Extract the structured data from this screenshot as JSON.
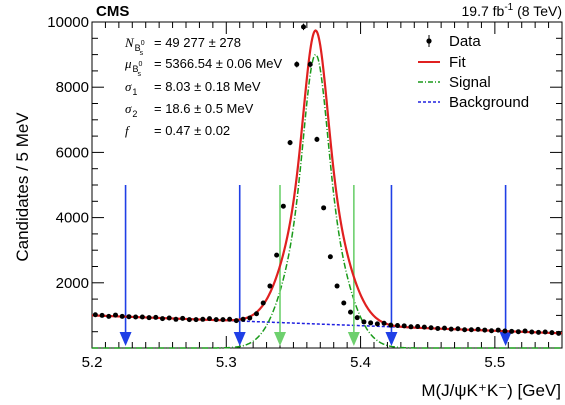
{
  "chart_data": {
    "type": "scatter",
    "experiment": "CMS",
    "lumi_label": "19.7 fb",
    "lumi_exp": "-1",
    "energy_label": " (8 TeV)",
    "xlabel": "M(J/ψK⁺K⁻) [GeV]",
    "ylabel": "Candidates / 5 MeV",
    "xlim": [
      5.2,
      5.55
    ],
    "ylim": [
      0,
      10000
    ],
    "xticks": [
      "5.2",
      "5.3",
      "5.4",
      "5.5"
    ],
    "yticks": [
      "2000",
      "4000",
      "6000",
      "8000",
      "10000"
    ],
    "fit_params": [
      {
        "symbol": "N",
        "sub": "B",
        "subsub": "s",
        "supsup": "0",
        "text": "= 49 277 ± 278"
      },
      {
        "symbol": "μ",
        "sub": "B",
        "subsub": "s",
        "supsup": "0",
        "text": "= 5366.54 ± 0.06 MeV"
      },
      {
        "symbol": "σ",
        "sub": "1",
        "subsub": "",
        "supsup": "",
        "text": "= 8.03 ± 0.18 MeV"
      },
      {
        "symbol": "σ",
        "sub": "2",
        "subsub": "",
        "supsup": "",
        "text": "= 18.6 ± 0.5 MeV"
      },
      {
        "symbol": "f",
        "sub": "",
        "subsub": "",
        "supsup": "",
        "text": "= 0.47 ± 0.02"
      }
    ],
    "legend": [
      {
        "label": "Data",
        "style": "marker"
      },
      {
        "label": "Fit",
        "style": "solid",
        "color": "#e02020"
      },
      {
        "label": "Signal",
        "style": "dashdot",
        "color": "#1a9a1a"
      },
      {
        "label": "Background",
        "style": "dashed",
        "color": "#2020e0"
      }
    ],
    "legend_position": "top-right",
    "data_x": [
      5.2025,
      5.2075,
      5.2125,
      5.2175,
      5.2225,
      5.2275,
      5.2325,
      5.2375,
      5.2425,
      5.2475,
      5.2525,
      5.2575,
      5.2625,
      5.2675,
      5.2725,
      5.2775,
      5.2825,
      5.2875,
      5.2925,
      5.2975,
      5.3025,
      5.3075,
      5.3125,
      5.3175,
      5.3225,
      5.3275,
      5.3325,
      5.3375,
      5.3425,
      5.3475,
      5.3525,
      5.3575,
      5.3625,
      5.3675,
      5.3725,
      5.3775,
      5.3825,
      5.3875,
      5.3925,
      5.3975,
      5.4025,
      5.4075,
      5.4125,
      5.4175,
      5.4225,
      5.4275,
      5.4325,
      5.4375,
      5.4425,
      5.4475,
      5.4525,
      5.4575,
      5.4625,
      5.4675,
      5.4725,
      5.4775,
      5.4825,
      5.4875,
      5.4925,
      5.4975,
      5.5025,
      5.5075,
      5.5125,
      5.5175,
      5.5225,
      5.5275,
      5.5325,
      5.5375,
      5.5425,
      5.5475
    ],
    "data_y": [
      1020,
      1000,
      970,
      1010,
      970,
      960,
      950,
      950,
      930,
      940,
      900,
      920,
      880,
      910,
      870,
      870,
      880,
      900,
      870,
      870,
      880,
      840,
      880,
      920,
      1050,
      1380,
      1900,
      2850,
      4350,
      6300,
      8700,
      9850,
      8700,
      6400,
      4300,
      2800,
      1900,
      1380,
      1100,
      930,
      800,
      770,
      740,
      760,
      700,
      690,
      680,
      650,
      660,
      640,
      620,
      600,
      610,
      580,
      590,
      560,
      560,
      570,
      550,
      530,
      550,
      520,
      510,
      500,
      520,
      490,
      480,
      490,
      470,
      450
    ],
    "fit_model": {
      "mu": 5.36654,
      "sigma1": 0.00803,
      "sigma2": 0.0186,
      "f": 0.47,
      "signal_peak": 9000,
      "bkg_start": 1000,
      "bkg_end": 450
    },
    "signal_window_lines": [
      5.34,
      5.395
    ],
    "sideband_lines": [
      5.225,
      5.31,
      5.423,
      5.508
    ],
    "colors": {
      "fit": "#e02020",
      "signal": "#1a9a1a",
      "background": "#2020e0",
      "data": "#000000",
      "sideband_arrow": "#1f3fe6",
      "signal_arrow": "#6ed06e"
    }
  }
}
